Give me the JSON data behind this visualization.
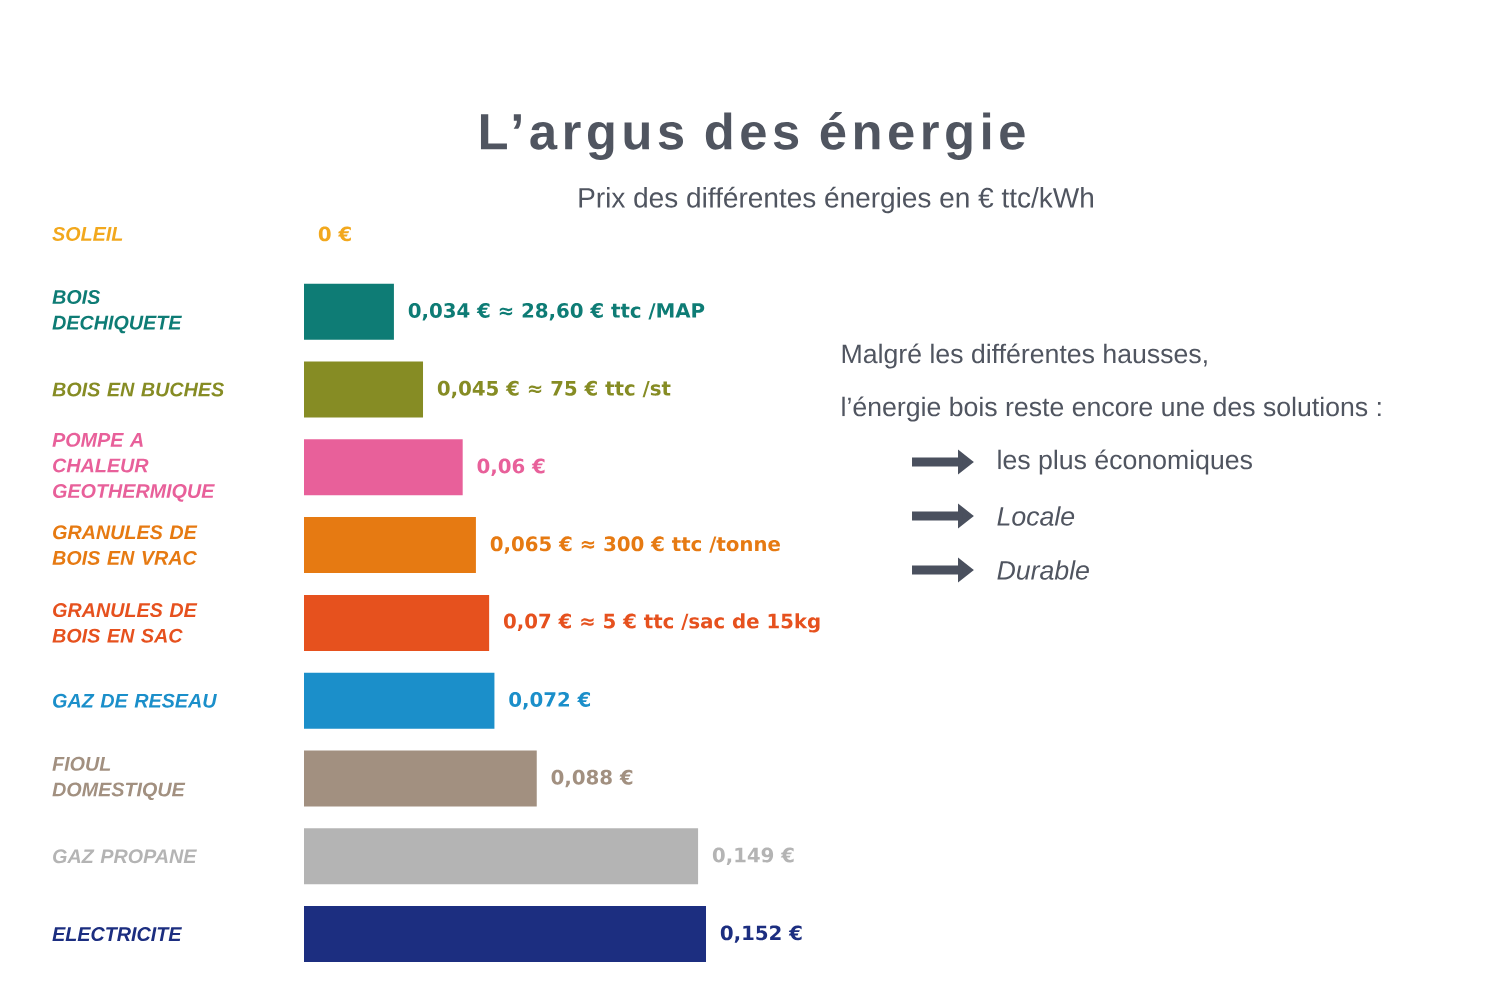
{
  "chart_data": {
    "type": "bar",
    "orientation": "horizontal",
    "title": "L’argus des énergie",
    "subtitle": "Prix des différentes énergies en € ttc/kWh",
    "categories": [
      "SOLEIL",
      "BOIS DECHIQUETE",
      "BOIS EN BUCHES",
      "POMPE A CHALEUR GEOTHERMIQUE",
      "GRANULES DE BOIS EN VRAC",
      "GRANULES DE BOIS EN SAC",
      "GAZ DE RESEAU",
      "FIOUL DOMESTIQUE",
      "GAZ PROPANE",
      "ELECTRICITE"
    ],
    "values": [
      0,
      0.034,
      0.045,
      0.06,
      0.065,
      0.07,
      0.072,
      0.088,
      0.149,
      0.152
    ],
    "colors": [
      "#f2a81d",
      "#0e7c75",
      "#868c24",
      "#e8609a",
      "#e67a12",
      "#e6511e",
      "#1b8fca",
      "#a29080",
      "#b4b4b4",
      "#1c2e80"
    ],
    "value_labels": [
      "0 €",
      "0,034 € ≈ 28,60 € ttc /MAP",
      "0,045 € ≈ 75 € ttc /st",
      "0,06 €",
      "0,065 € ≈ 300 € ttc /tonne",
      "0,07 € ≈ 5 € ttc /sac de 15kg",
      "0,072 €",
      "0,088 €",
      "0,149 €",
      "0,152 €"
    ],
    "annotations": [
      "Malgré les différentes hausses,",
      "l’énergie bois reste encore une des solutions :",
      "les plus économiques",
      "Locale",
      "Durable"
    ]
  }
}
